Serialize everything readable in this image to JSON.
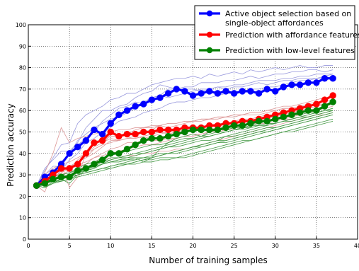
{
  "chart_data": {
    "type": "line",
    "xlabel": "Number of training samples",
    "ylabel": "Prediction accuracy",
    "xlim": [
      0,
      40
    ],
    "ylim": [
      0,
      100
    ],
    "xticks": [
      "0",
      "5",
      "10",
      "15",
      "20",
      "25",
      "30",
      "35",
      "40"
    ],
    "yticks": [
      "0",
      "10",
      "20",
      "30",
      "40",
      "50",
      "60",
      "70",
      "80",
      "90",
      "100"
    ],
    "grid": true,
    "legend_position": "top-right",
    "legend": [
      {
        "lines": [
          "Active object selection based on",
          "single-object affordances"
        ],
        "color": "#0000ff"
      },
      {
        "lines": [
          "Prediction with affordance features"
        ],
        "color": "#ff0000"
      },
      {
        "lines": [
          "Prediction with low-level features"
        ],
        "color": "#008000"
      }
    ],
    "x": [
      1,
      2,
      3,
      4,
      5,
      6,
      7,
      8,
      9,
      10,
      11,
      12,
      13,
      14,
      15,
      16,
      17,
      18,
      19,
      20,
      21,
      22,
      23,
      24,
      25,
      26,
      27,
      28,
      29,
      30,
      31,
      32,
      33,
      34,
      35,
      36,
      37
    ],
    "series": [
      {
        "name": "Active object selection based on single-object affordances",
        "color": "#0000ff",
        "values": [
          25,
          29,
          31,
          35,
          40,
          43,
          46,
          51,
          49,
          54,
          58,
          60,
          62,
          63,
          65,
          66,
          68,
          70,
          69,
          67,
          68,
          69,
          68,
          69,
          68,
          69,
          69,
          68,
          70,
          69,
          71,
          72,
          72,
          73,
          73,
          75,
          75
        ]
      },
      {
        "name": "Prediction with affordance features",
        "color": "#ff0000",
        "values": [
          25,
          27,
          30,
          33,
          33,
          35,
          40,
          45,
          46,
          50,
          48,
          49,
          49,
          50,
          50,
          51,
          51,
          51,
          52,
          52,
          52,
          53,
          53,
          54,
          54,
          55,
          55,
          56,
          57,
          58,
          59,
          60,
          61,
          62,
          63,
          65,
          67
        ]
      },
      {
        "name": "Prediction with low-level features",
        "color": "#008000",
        "values": [
          25,
          26,
          28,
          29,
          29,
          32,
          33,
          35,
          37,
          40,
          40,
          42,
          44,
          46,
          47,
          47,
          48,
          49,
          50,
          51,
          51,
          51,
          51,
          52,
          53,
          53,
          54,
          55,
          55,
          56,
          57,
          58,
          59,
          60,
          60,
          62,
          64
        ]
      }
    ],
    "background_lines": [
      {
        "color": "#9999dd",
        "values": [
          25,
          32,
          38,
          44,
          45,
          54,
          58,
          60,
          62,
          65,
          66,
          68,
          68,
          70,
          72,
          73,
          74,
          75,
          75,
          76,
          75,
          77,
          76,
          77,
          78,
          77,
          79,
          78,
          79,
          80,
          79,
          80,
          81,
          80,
          80,
          81,
          81
        ]
      },
      {
        "color": "#9999dd",
        "values": [
          25,
          28,
          30,
          36,
          40,
          44,
          47,
          50,
          55,
          58,
          61,
          62,
          64,
          63,
          66,
          67,
          70,
          70,
          71,
          71,
          73,
          73,
          73,
          74,
          74,
          75,
          76,
          75,
          76,
          77,
          77,
          78,
          78,
          79,
          79,
          78,
          79
        ]
      },
      {
        "color": "#9999dd",
        "values": [
          25,
          30,
          34,
          34,
          40,
          46,
          49,
          52,
          54,
          56,
          57,
          59,
          61,
          64,
          66,
          67,
          66,
          67,
          68,
          69,
          70,
          70,
          71,
          71,
          72,
          72,
          73,
          74,
          74,
          74,
          75,
          75,
          76,
          76,
          77,
          77,
          77
        ]
      },
      {
        "color": "#9999dd",
        "values": [
          25,
          26,
          28,
          32,
          37,
          40,
          45,
          47,
          50,
          52,
          55,
          56,
          57,
          59,
          60,
          61,
          63,
          64,
          64,
          65,
          66,
          66,
          67,
          68,
          68,
          69,
          70,
          70,
          71,
          71,
          72,
          73,
          74,
          74,
          75,
          75,
          76
        ]
      },
      {
        "color": "#9999dd",
        "values": [
          25,
          33,
          37,
          41,
          41,
          45,
          52,
          56,
          60,
          60,
          62,
          63,
          66,
          68,
          69,
          72,
          71,
          70,
          70,
          70,
          69,
          70,
          71,
          70,
          71,
          71,
          72,
          73,
          72,
          73,
          74,
          74,
          75,
          75,
          75,
          76,
          77
        ]
      },
      {
        "color": "#dd9999",
        "values": [
          25,
          22,
          32,
          35,
          24,
          29,
          40,
          42,
          44,
          49,
          48,
          50,
          49,
          50,
          51,
          53,
          52,
          53,
          54,
          55,
          55,
          56,
          56,
          57,
          57,
          58,
          58,
          58,
          59,
          60,
          61,
          61,
          62,
          63,
          64,
          64,
          65
        ]
      },
      {
        "color": "#dd9999",
        "values": [
          25,
          28,
          30,
          30,
          32,
          36,
          38,
          42,
          44,
          45,
          46,
          47,
          47,
          48,
          49,
          50,
          50,
          50,
          51,
          52,
          52,
          53,
          54,
          54,
          55,
          56,
          56,
          57,
          58,
          58,
          59,
          60,
          60,
          61,
          62,
          63,
          63
        ]
      },
      {
        "color": "#dd9999",
        "values": [
          25,
          27,
          29,
          31,
          33,
          37,
          40,
          43,
          45,
          47,
          46,
          47,
          48,
          47,
          48,
          49,
          50,
          51,
          50,
          51,
          52,
          51,
          52,
          53,
          54,
          55,
          55,
          56,
          56,
          57,
          58,
          59,
          60,
          60,
          61,
          62,
          63
        ]
      },
      {
        "color": "#dd9999",
        "values": [
          25,
          26,
          27,
          28,
          29,
          31,
          35,
          38,
          40,
          42,
          43,
          45,
          45,
          46,
          46,
          46,
          47,
          47,
          48,
          49,
          49,
          50,
          51,
          51,
          52,
          53,
          54,
          54,
          55,
          56,
          56,
          57,
          58,
          59,
          60,
          61,
          62
        ]
      },
      {
        "color": "#dd9999",
        "values": [
          25,
          27,
          30,
          32,
          34,
          36,
          38,
          40,
          43,
          46,
          46,
          47,
          47,
          48,
          49,
          50,
          49,
          50,
          51,
          51,
          52,
          53,
          53,
          54,
          55,
          56,
          55,
          56,
          57,
          58,
          58,
          59,
          60,
          61,
          62,
          63,
          64
        ]
      },
      {
        "color": "#dd9999",
        "values": [
          25,
          30,
          33,
          35,
          36,
          38,
          40,
          44,
          46,
          48,
          48,
          49,
          51,
          52,
          52,
          53,
          54,
          54,
          55,
          55,
          56,
          56,
          57,
          57,
          58,
          58,
          59,
          59,
          60,
          61,
          62,
          62,
          63,
          64,
          65,
          66,
          66
        ]
      },
      {
        "color": "#dd9999",
        "values": [
          25,
          31,
          40,
          52,
          45,
          47,
          48,
          49,
          50,
          50,
          51,
          51,
          52,
          52,
          53,
          53,
          54,
          54,
          55,
          55,
          56,
          56,
          57,
          57,
          58,
          58,
          59,
          59,
          60,
          60,
          61,
          61,
          62,
          62,
          63,
          63,
          64
        ]
      },
      {
        "color": "#dd9999",
        "values": [
          25,
          28,
          30,
          32,
          33,
          34,
          35,
          36,
          37,
          38,
          38,
          39,
          39,
          40,
          40,
          41,
          41,
          42,
          42,
          43,
          44,
          45,
          46,
          47,
          48,
          49,
          50,
          51,
          52,
          53,
          54,
          55,
          56,
          57,
          58,
          59,
          60
        ]
      },
      {
        "color": "#dd9999",
        "values": [
          25,
          26,
          29,
          31,
          33,
          35,
          36,
          38,
          39,
          40,
          41,
          42,
          43,
          44,
          44,
          45,
          46,
          47,
          48,
          48,
          49,
          50,
          50,
          51,
          51,
          52,
          53,
          54,
          54,
          55,
          56,
          56,
          57,
          57,
          58,
          58,
          59
        ]
      },
      {
        "color": "#449944",
        "values": [
          25,
          24,
          27,
          28,
          26,
          30,
          32,
          33,
          35,
          37,
          38,
          38,
          38,
          36,
          38,
          42,
          45,
          47,
          48,
          49,
          48,
          50,
          51,
          51,
          52,
          52,
          53,
          53,
          54,
          54,
          55,
          55,
          56,
          57,
          58,
          59,
          60
        ]
      },
      {
        "color": "#449944",
        "values": [
          25,
          26,
          28,
          30,
          31,
          33,
          35,
          36,
          38,
          39,
          40,
          41,
          42,
          43,
          44,
          44,
          45,
          46,
          47,
          47,
          48,
          49,
          50,
          50,
          51,
          52,
          52,
          53,
          54,
          54,
          55,
          56,
          57,
          57,
          58,
          59,
          60
        ]
      },
      {
        "color": "#449944",
        "values": [
          25,
          27,
          28,
          29,
          30,
          32,
          33,
          35,
          36,
          37,
          38,
          39,
          40,
          41,
          42,
          43,
          44,
          45,
          46,
          47,
          48,
          48,
          49,
          50,
          51,
          51,
          52,
          53,
          53,
          54,
          55,
          56,
          57,
          58,
          59,
          60,
          61
        ]
      },
      {
        "color": "#449944",
        "values": [
          25,
          24,
          26,
          28,
          29,
          31,
          33,
          34,
          36,
          38,
          38,
          39,
          40,
          40,
          41,
          42,
          43,
          43,
          44,
          45,
          46,
          46,
          47,
          48,
          48,
          49,
          50,
          51,
          52,
          52,
          53,
          54,
          55,
          56,
          57,
          58,
          59
        ]
      },
      {
        "color": "#449944",
        "values": [
          25,
          26,
          27,
          27,
          28,
          30,
          31,
          32,
          33,
          33,
          34,
          35,
          36,
          37,
          37,
          38,
          38,
          38,
          39,
          40,
          41,
          42,
          43,
          44,
          45,
          46,
          46,
          47,
          48,
          49,
          50,
          50,
          51,
          52,
          53,
          54,
          55
        ]
      },
      {
        "color": "#449944",
        "values": [
          25,
          26,
          27,
          28,
          29,
          30,
          31,
          32,
          33,
          34,
          35,
          36,
          37,
          38,
          38,
          39,
          40,
          41,
          42,
          43,
          44,
          45,
          46,
          48,
          49,
          50,
          51,
          52,
          53,
          54,
          55,
          56,
          57,
          58,
          59,
          60,
          61
        ]
      },
      {
        "color": "#449944",
        "values": [
          25,
          27,
          29,
          30,
          31,
          32,
          33,
          34,
          35,
          36,
          36,
          37,
          37,
          38,
          38,
          39,
          40,
          41,
          42,
          43,
          43,
          44,
          45,
          46,
          47,
          48,
          49,
          50,
          51,
          52,
          53,
          54,
          55,
          56,
          57,
          58,
          59
        ]
      },
      {
        "color": "#449944",
        "values": [
          25,
          26,
          27,
          28,
          29,
          30,
          31,
          32,
          33,
          34,
          35,
          35,
          35,
          36,
          36,
          37,
          37,
          38,
          38,
          39,
          40,
          41,
          42,
          43,
          44,
          45,
          46,
          47,
          48,
          49,
          50,
          51,
          52,
          53,
          54,
          55,
          56
        ]
      },
      {
        "color": "#449944",
        "values": [
          25,
          25,
          26,
          27,
          28,
          29,
          30,
          31,
          32,
          33,
          34,
          35,
          36,
          37,
          38,
          39,
          40,
          40,
          41,
          42,
          43,
          44,
          45,
          45,
          46,
          47,
          48,
          49,
          50,
          51,
          52,
          53,
          54,
          55,
          56,
          57,
          58
        ]
      },
      {
        "color": "#449944",
        "values": [
          25,
          26,
          27,
          28,
          30,
          31,
          32,
          33,
          35,
          36,
          37,
          38,
          39,
          40,
          41,
          42,
          43,
          44,
          45,
          46,
          47,
          48,
          49,
          50,
          51,
          52,
          53,
          54,
          55,
          56,
          57,
          58,
          58,
          59,
          59,
          60,
          60
        ]
      },
      {
        "color": "#449944",
        "values": [
          25,
          27,
          28,
          29,
          30,
          31,
          32,
          34,
          35,
          36,
          37,
          37,
          38,
          38,
          39,
          40,
          40,
          41,
          42,
          43,
          44,
          45,
          46,
          46,
          47,
          48,
          49,
          50,
          50,
          51,
          52,
          53,
          54,
          55,
          56,
          57,
          58
        ]
      }
    ]
  }
}
